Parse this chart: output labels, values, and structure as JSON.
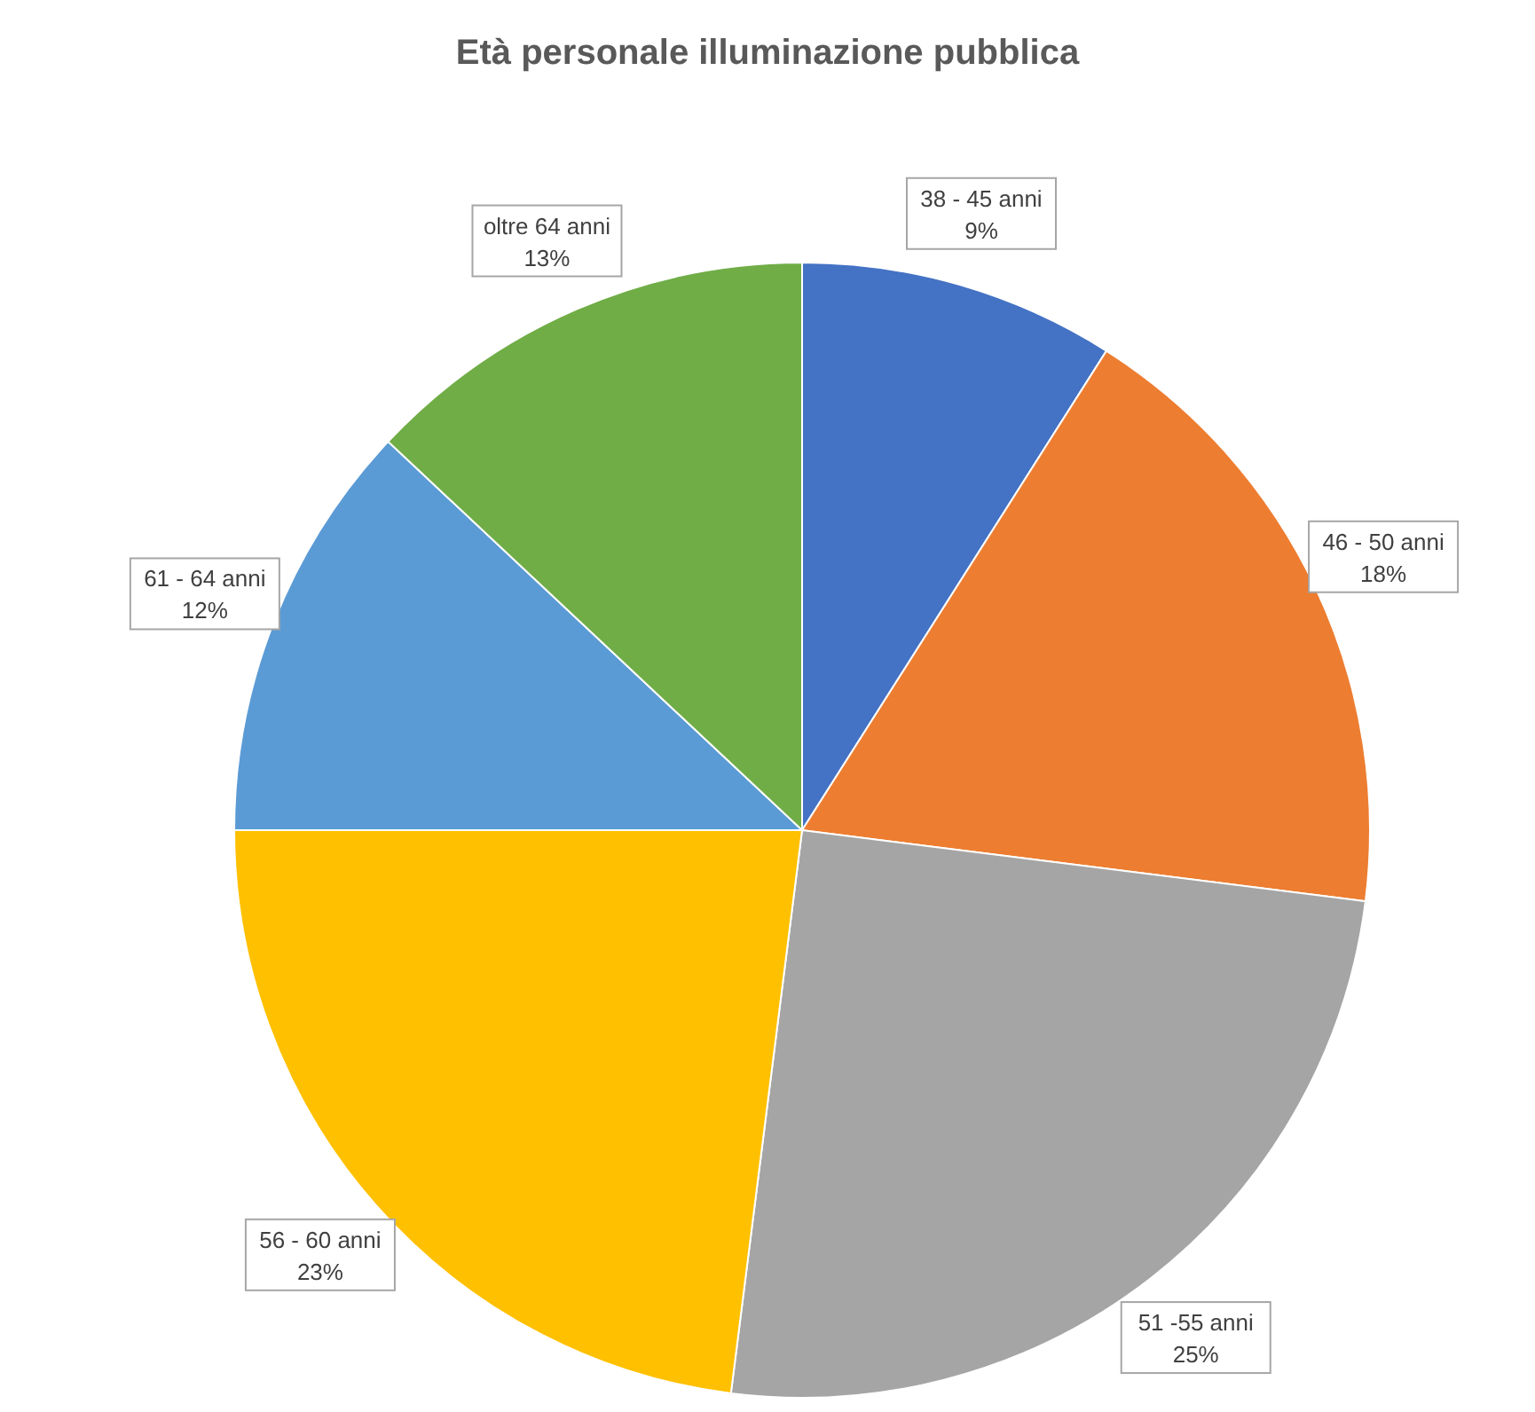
{
  "chart_data": {
    "type": "pie",
    "title": "Età personale illuminazione pubblica",
    "categories": [
      "38 - 45 anni",
      "46 - 50 anni",
      "51 -55 anni",
      "56 - 60 anni",
      "61 - 64 anni",
      "oltre 64 anni"
    ],
    "values": [
      9,
      18,
      25,
      23,
      12,
      13
    ],
    "value_labels": [
      "9%",
      "18%",
      "25%",
      "23%",
      "12%",
      "13%"
    ],
    "colors": [
      "#4472c4",
      "#ed7d31",
      "#a5a5a5",
      "#ffc000",
      "#5b9bd5",
      "#70ad47"
    ],
    "legend": false
  }
}
